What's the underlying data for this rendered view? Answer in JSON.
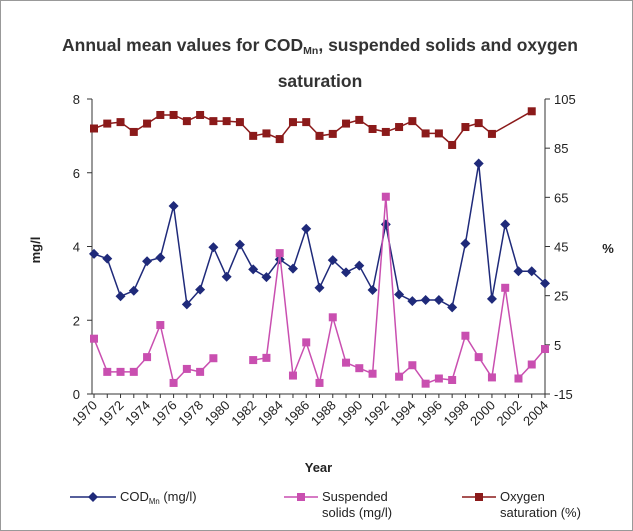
{
  "chart_data": {
    "type": "line",
    "title": [
      "Annual mean values for COD",
      "Mn",
      ", suspended solids and oxygen saturation"
    ],
    "xlabel": "Year",
    "ylabel": "mg/l",
    "y2label": "%",
    "categories": [
      "1970",
      null,
      "1972",
      null,
      "1974",
      null,
      "1976",
      null,
      "1978",
      null,
      "1980",
      null,
      "1982",
      null,
      "1984",
      null,
      "1986",
      null,
      "1988",
      null,
      "1990",
      null,
      "1992",
      null,
      "1994",
      null,
      "1996",
      null,
      "1998",
      null,
      "2000",
      null,
      "2002",
      null,
      "2004"
    ],
    "ylim": [
      0,
      8
    ],
    "yticks": [
      0,
      2,
      4,
      6,
      8
    ],
    "y2lim": [
      -15,
      105
    ],
    "y2ticks": [
      -15,
      5,
      25,
      45,
      65,
      85,
      105
    ],
    "series": [
      {
        "name": [
          "COD",
          "Mn",
          " (mg/l)"
        ],
        "color": "#1f2a7a",
        "marker": "diamond",
        "values": [
          3.8,
          3.67,
          2.65,
          2.8,
          3.6,
          3.7,
          5.1,
          2.43,
          2.83,
          3.98,
          3.18,
          4.05,
          3.38,
          3.17,
          3.65,
          3.4,
          4.48,
          2.88,
          3.63,
          3.3,
          3.48,
          2.82,
          4.6,
          2.7,
          2.52,
          2.55,
          2.55,
          2.35,
          4.08,
          6.25,
          2.58,
          4.6,
          3.33,
          3.33,
          3.0
        ]
      },
      {
        "name": [
          "Suspended solids (mg/l)"
        ],
        "color": "#c94fb0",
        "marker": "square",
        "values": [
          1.5,
          0.6,
          0.6,
          0.6,
          1.0,
          1.87,
          0.3,
          0.68,
          0.6,
          0.97,
          null,
          null,
          0.92,
          0.98,
          3.82,
          0.5,
          1.4,
          0.3,
          2.08,
          0.85,
          0.7,
          0.55,
          5.35,
          0.47,
          0.78,
          0.28,
          0.42,
          0.38,
          1.58,
          1.0,
          0.45,
          2.88,
          0.42,
          0.8,
          1.22
        ]
      },
      {
        "name": [
          "Oxygen saturation (%)"
        ],
        "color": "#8b1a1a",
        "marker": "square",
        "axis": "y2",
        "connect_gaps": true,
        "values": [
          93,
          95,
          95.6,
          91.6,
          95,
          98.5,
          98.5,
          96,
          98.5,
          96,
          96,
          95.6,
          90,
          91,
          88.7,
          95.6,
          95.6,
          90,
          90.8,
          95,
          96.5,
          92.8,
          91.6,
          93.6,
          96,
          91,
          91,
          86.3,
          93.6,
          95.2,
          90.8,
          null,
          null,
          100,
          null
        ]
      }
    ]
  }
}
